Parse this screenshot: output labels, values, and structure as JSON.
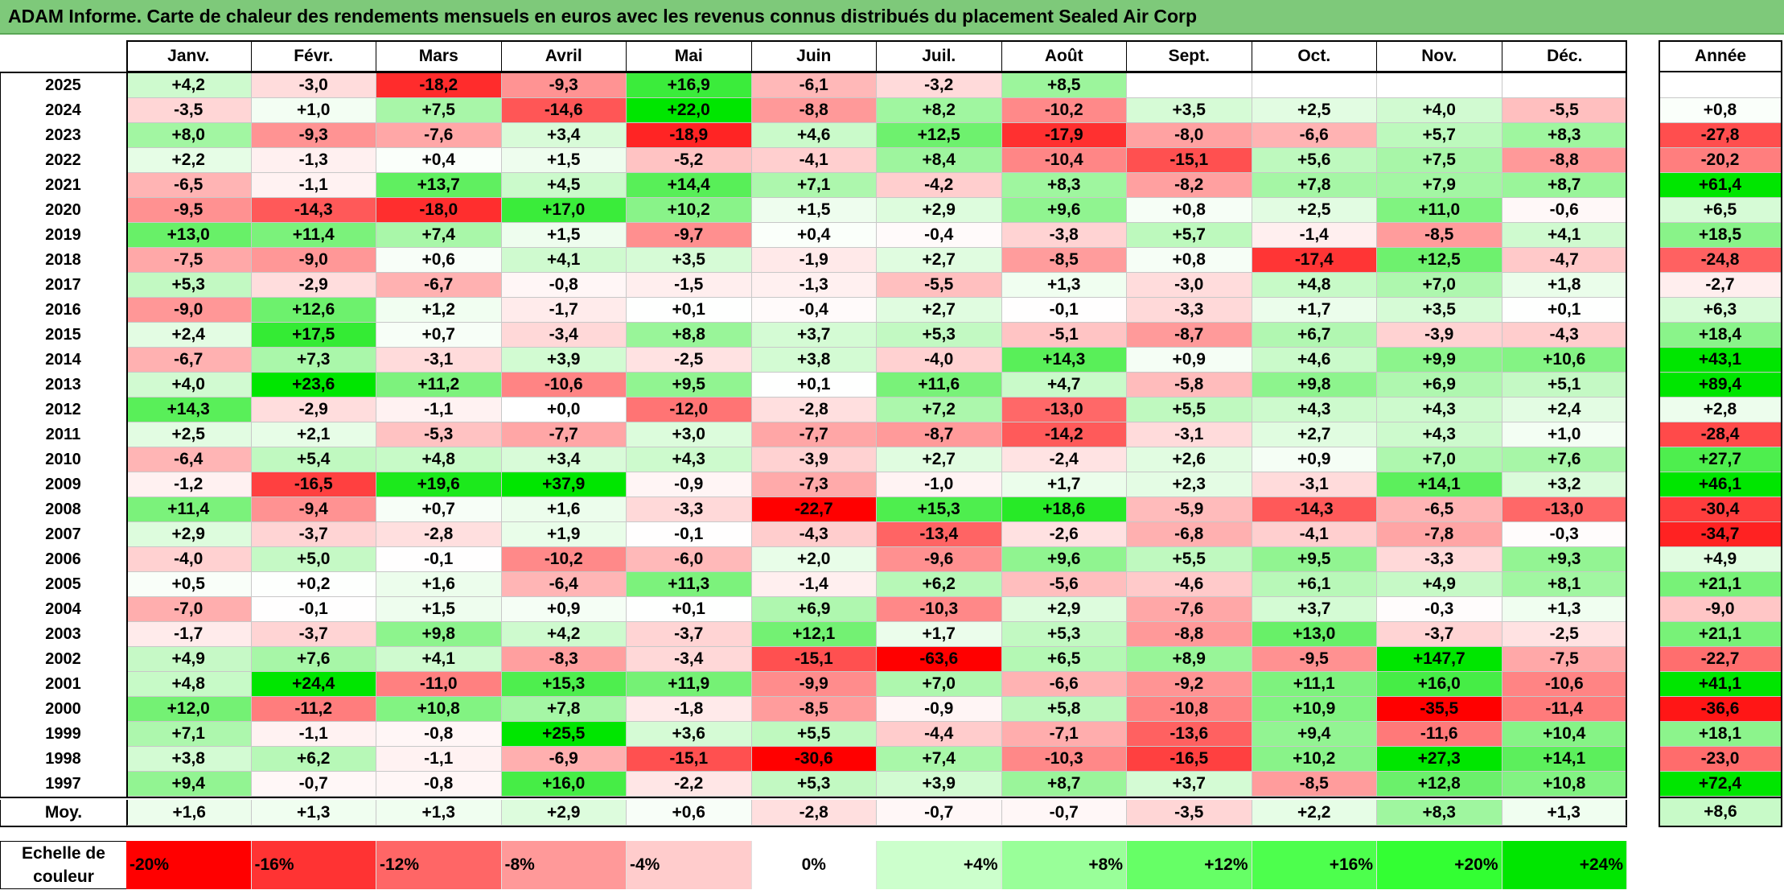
{
  "title": "ADAM Informe. Carte de chaleur des rendements mensuels en euros avec les revenus connus distribués du placement Sealed Air Corp",
  "chart_data": {
    "type": "heatmap",
    "months": [
      "Janv.",
      "Févr.",
      "Mars",
      "Avril",
      "Mai",
      "Juin",
      "Juil.",
      "Août",
      "Sept.",
      "Oct.",
      "Nov.",
      "Déc."
    ],
    "annual_header": "Année",
    "rows": [
      {
        "year": "2025",
        "values": [
          "+4,2",
          "-3,0",
          "-18,2",
          "-9,3",
          "+16,9",
          "-6,1",
          "-3,2",
          "+8,5",
          "",
          "",
          "",
          ""
        ],
        "annual": ""
      },
      {
        "year": "2024",
        "values": [
          "-3,5",
          "+1,0",
          "+7,5",
          "-14,6",
          "+22,0",
          "-8,8",
          "+8,2",
          "-10,2",
          "+3,5",
          "+2,5",
          "+4,0",
          "-5,5"
        ],
        "annual": "+0,8"
      },
      {
        "year": "2023",
        "values": [
          "+8,0",
          "-9,3",
          "-7,6",
          "+3,4",
          "-18,9",
          "+4,6",
          "+12,5",
          "-17,9",
          "-8,0",
          "-6,6",
          "+5,7",
          "+8,3"
        ],
        "annual": "-27,8"
      },
      {
        "year": "2022",
        "values": [
          "+2,2",
          "-1,3",
          "+0,4",
          "+1,5",
          "-5,2",
          "-4,1",
          "+8,4",
          "-10,4",
          "-15,1",
          "+5,6",
          "+7,5",
          "-8,8"
        ],
        "annual": "-20,2"
      },
      {
        "year": "2021",
        "values": [
          "-6,5",
          "-1,1",
          "+13,7",
          "+4,5",
          "+14,4",
          "+7,1",
          "-4,2",
          "+8,3",
          "-8,2",
          "+7,8",
          "+7,9",
          "+8,7"
        ],
        "annual": "+61,4"
      },
      {
        "year": "2020",
        "values": [
          "-9,5",
          "-14,3",
          "-18,0",
          "+17,0",
          "+10,2",
          "+1,5",
          "+2,9",
          "+9,6",
          "+0,8",
          "+2,5",
          "+11,0",
          "-0,6"
        ],
        "annual": "+6,5"
      },
      {
        "year": "2019",
        "values": [
          "+13,0",
          "+11,4",
          "+7,4",
          "+1,5",
          "-9,7",
          "+0,4",
          "-0,4",
          "-3,8",
          "+5,7",
          "-1,4",
          "-8,5",
          "+4,1"
        ],
        "annual": "+18,5"
      },
      {
        "year": "2018",
        "values": [
          "-7,5",
          "-9,0",
          "+0,6",
          "+4,1",
          "+3,5",
          "-1,9",
          "+2,7",
          "-8,5",
          "+0,8",
          "-17,4",
          "+12,5",
          "-4,7"
        ],
        "annual": "-24,8"
      },
      {
        "year": "2017",
        "values": [
          "+5,3",
          "-2,9",
          "-6,7",
          "-0,8",
          "-1,5",
          "-1,3",
          "-5,5",
          "+1,3",
          "-3,0",
          "+4,8",
          "+7,0",
          "+1,8"
        ],
        "annual": "-2,7"
      },
      {
        "year": "2016",
        "values": [
          "-9,0",
          "+12,6",
          "+1,2",
          "-1,7",
          "+0,1",
          "-0,4",
          "+2,7",
          "-0,1",
          "-3,3",
          "+1,7",
          "+3,5",
          "+0,1"
        ],
        "annual": "+6,3"
      },
      {
        "year": "2015",
        "values": [
          "+2,4",
          "+17,5",
          "+0,7",
          "-3,4",
          "+8,8",
          "+3,7",
          "+5,3",
          "-5,1",
          "-8,7",
          "+6,7",
          "-3,9",
          "-4,3"
        ],
        "annual": "+18,4"
      },
      {
        "year": "2014",
        "values": [
          "-6,7",
          "+7,3",
          "-3,1",
          "+3,9",
          "-2,5",
          "+3,8",
          "-4,0",
          "+14,3",
          "+0,9",
          "+4,6",
          "+9,9",
          "+10,6"
        ],
        "annual": "+43,1"
      },
      {
        "year": "2013",
        "values": [
          "+4,0",
          "+23,6",
          "+11,2",
          "-10,6",
          "+9,5",
          "+0,1",
          "+11,6",
          "+4,7",
          "-5,8",
          "+9,8",
          "+6,9",
          "+5,1"
        ],
        "annual": "+89,4"
      },
      {
        "year": "2012",
        "values": [
          "+14,3",
          "-2,9",
          "-1,1",
          "+0,0",
          "-12,0",
          "-2,8",
          "+7,2",
          "-13,0",
          "+5,5",
          "+4,3",
          "+4,3",
          "+2,4"
        ],
        "annual": "+2,8"
      },
      {
        "year": "2011",
        "values": [
          "+2,5",
          "+2,1",
          "-5,3",
          "-7,7",
          "+3,0",
          "-7,7",
          "-8,7",
          "-14,2",
          "-3,1",
          "+2,7",
          "+4,3",
          "+1,0"
        ],
        "annual": "-28,4"
      },
      {
        "year": "2010",
        "values": [
          "-6,4",
          "+5,4",
          "+4,8",
          "+3,4",
          "+4,3",
          "-3,9",
          "+2,7",
          "-2,4",
          "+2,6",
          "+0,9",
          "+7,0",
          "+7,6"
        ],
        "annual": "+27,7"
      },
      {
        "year": "2009",
        "values": [
          "-1,2",
          "-16,5",
          "+19,6",
          "+37,9",
          "-0,9",
          "-7,3",
          "-1,0",
          "+1,7",
          "+2,3",
          "-3,1",
          "+14,1",
          "+3,2"
        ],
        "annual": "+46,1"
      },
      {
        "year": "2008",
        "values": [
          "+11,4",
          "-9,4",
          "+0,7",
          "+1,6",
          "-3,3",
          "-22,7",
          "+15,3",
          "+18,6",
          "-5,9",
          "-14,3",
          "-6,5",
          "-13,0"
        ],
        "annual": "-30,4"
      },
      {
        "year": "2007",
        "values": [
          "+2,9",
          "-3,7",
          "-2,8",
          "+1,9",
          "-0,1",
          "-4,3",
          "-13,4",
          "-2,6",
          "-6,8",
          "-4,1",
          "-7,8",
          "-0,3"
        ],
        "annual": "-34,7"
      },
      {
        "year": "2006",
        "values": [
          "-4,0",
          "+5,0",
          "-0,1",
          "-10,2",
          "-6,0",
          "+2,0",
          "-9,6",
          "+9,6",
          "+5,5",
          "+9,5",
          "-3,3",
          "+9,3"
        ],
        "annual": "+4,9"
      },
      {
        "year": "2005",
        "values": [
          "+0,5",
          "+0,2",
          "+1,6",
          "-6,4",
          "+11,3",
          "-1,4",
          "+6,2",
          "-5,6",
          "-4,6",
          "+6,1",
          "+4,9",
          "+8,1"
        ],
        "annual": "+21,1"
      },
      {
        "year": "2004",
        "values": [
          "-7,0",
          "-0,1",
          "+1,5",
          "+0,9",
          "+0,1",
          "+6,9",
          "-10,3",
          "+2,9",
          "-7,6",
          "+3,7",
          "-0,3",
          "+1,3"
        ],
        "annual": "-9,0"
      },
      {
        "year": "2003",
        "values": [
          "-1,7",
          "-3,7",
          "+9,8",
          "+4,2",
          "-3,7",
          "+12,1",
          "+1,7",
          "+5,3",
          "-8,8",
          "+13,0",
          "-3,7",
          "-2,5"
        ],
        "annual": "+21,1"
      },
      {
        "year": "2002",
        "values": [
          "+4,9",
          "+7,6",
          "+4,1",
          "-8,3",
          "-3,4",
          "-15,1",
          "-63,6",
          "+6,5",
          "+8,9",
          "-9,5",
          "+147,7",
          "-7,5"
        ],
        "annual": "-22,7"
      },
      {
        "year": "2001",
        "values": [
          "+4,8",
          "+24,4",
          "-11,0",
          "+15,3",
          "+11,9",
          "-9,9",
          "+7,0",
          "-6,6",
          "-9,2",
          "+11,1",
          "+16,0",
          "-10,6"
        ],
        "annual": "+41,1"
      },
      {
        "year": "2000",
        "values": [
          "+12,0",
          "-11,2",
          "+10,8",
          "+7,8",
          "-1,8",
          "-8,5",
          "-0,9",
          "+5,8",
          "-10,8",
          "+10,9",
          "-35,5",
          "-11,4"
        ],
        "annual": "-36,6"
      },
      {
        "year": "1999",
        "values": [
          "+7,1",
          "-1,1",
          "-0,8",
          "+25,5",
          "+3,6",
          "+5,5",
          "-4,4",
          "-7,1",
          "-13,6",
          "+9,4",
          "-11,6",
          "+10,4"
        ],
        "annual": "+18,1"
      },
      {
        "year": "1998",
        "values": [
          "+3,8",
          "+6,2",
          "-1,1",
          "-6,9",
          "-15,1",
          "-30,6",
          "+7,4",
          "-10,3",
          "-16,5",
          "+10,2",
          "+27,3",
          "+14,1"
        ],
        "annual": "-23,0"
      },
      {
        "year": "1997",
        "values": [
          "+9,4",
          "-0,7",
          "-0,8",
          "+16,0",
          "-2,2",
          "+5,3",
          "+3,9",
          "+8,7",
          "+3,7",
          "-8,5",
          "+12,8",
          "+10,8"
        ],
        "annual": "+72,4"
      }
    ],
    "average": {
      "label": "Moy.",
      "values": [
        "+1,6",
        "+1,3",
        "+1,3",
        "+2,9",
        "+0,6",
        "-2,8",
        "-0,7",
        "-0,7",
        "-3,5",
        "+2,2",
        "+8,3",
        "+1,3"
      ],
      "annual": "+8,6"
    },
    "color_scale": {
      "label_line1": "Echelle de",
      "label_line2": "couleur",
      "steps": [
        {
          "label": "-20%",
          "value": -20,
          "color": "#ff0000"
        },
        {
          "label": "-16%",
          "value": -16,
          "color": "#ff3333"
        },
        {
          "label": "-12%",
          "value": -12,
          "color": "#ff6666"
        },
        {
          "label": "-8%",
          "value": -8,
          "color": "#ff9999"
        },
        {
          "label": "-4%",
          "value": -4,
          "color": "#ffcccc"
        },
        {
          "label": "0%",
          "value": 0,
          "color": "#ffffff"
        },
        {
          "label": "+4%",
          "value": 4,
          "color": "#ccffcc"
        },
        {
          "label": "+8%",
          "value": 8,
          "color": "#99ff99"
        },
        {
          "label": "+12%",
          "value": 12,
          "color": "#66ff66"
        },
        {
          "label": "+16%",
          "value": 16,
          "color": "#4dff4d"
        },
        {
          "label": "+20%",
          "value": 20,
          "color": "#33ff33"
        },
        {
          "label": "+24%",
          "value": 24,
          "color": "#00e600"
        }
      ]
    }
  }
}
